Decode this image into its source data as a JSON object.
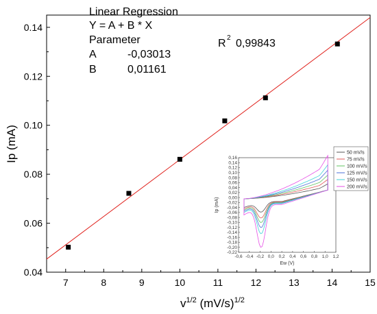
{
  "chart_data": {
    "type": "scatter",
    "xlabel": "v",
    "xlabel_sup": "1/2",
    "xlabel_units": " (mV/s)",
    "xlabel_units_sup": "1/2",
    "ylabel": "Ip (mA)",
    "xlim": [
      6.5,
      15
    ],
    "ylim": [
      0.04,
      0.145
    ],
    "x_ticks": [
      "7",
      "8",
      "9",
      "10",
      "11",
      "12",
      "13",
      "14",
      "15"
    ],
    "y_ticks": [
      "0.04",
      "0.06",
      "0.08",
      "0.10",
      "0.12",
      "0.14"
    ],
    "points": [
      {
        "x": 7.07,
        "y": 0.0502
      },
      {
        "x": 8.66,
        "y": 0.0722
      },
      {
        "x": 10.0,
        "y": 0.0861
      },
      {
        "x": 11.18,
        "y": 0.1018
      },
      {
        "x": 12.25,
        "y": 0.1112
      },
      {
        "x": 14.14,
        "y": 0.1332
      }
    ],
    "fit_line": {
      "intercept": -0.03013,
      "slope": 0.01161,
      "color": "#e0201b"
    },
    "marker_color": "#000000",
    "regression": {
      "title": "Linear Regression",
      "equation": "Y = A + B * X",
      "parameter": "Parameter",
      "a_label": "A",
      "a_value": "-0,03013",
      "b_label": "B",
      "b_value": "0,01161",
      "r_label": "R",
      "r_sup": "2",
      "r_value": "0,99843"
    },
    "inset": {
      "type": "line",
      "xlabel": "Ew (V)",
      "ylabel": "Ip (mA)",
      "xlim": [
        -0.6,
        1.2
      ],
      "ylim": [
        -0.22,
        0.16
      ],
      "x_ticks": [
        "-0,6",
        "-0,4",
        "-0,2",
        "0,0",
        "0,2",
        "0,4",
        "0,6",
        "0,8",
        "1,0",
        "1,2"
      ],
      "y_ticks": [
        "0,16",
        "0,14",
        "0,12",
        "0,10",
        "0,08",
        "0,06",
        "0,04",
        "0,02",
        "0,00",
        "-0,02",
        "-0,04",
        "-0,06",
        "-0,08",
        "-0,10",
        "-0,12",
        "-0,14",
        "-0,16",
        "-0,18",
        "-0,20",
        "-0,22"
      ],
      "legend_position": "top-right",
      "series": [
        {
          "name": "50 mV/s",
          "color": "#555555",
          "upper_end": 0.044,
          "lower_start": -0.04,
          "peak": -0.058
        },
        {
          "name": "75 mV/s",
          "color": "#e05a5a",
          "upper_end": 0.058,
          "lower_start": -0.045,
          "peak": -0.082
        },
        {
          "name": "100 mV/s",
          "color": "#62c462",
          "upper_end": 0.072,
          "lower_start": -0.05,
          "peak": -0.1
        },
        {
          "name": "125 mV/s",
          "color": "#4a6fd8",
          "upper_end": 0.088,
          "lower_start": -0.055,
          "peak": -0.12
        },
        {
          "name": "150 mV/s",
          "color": "#3fd2d8",
          "upper_end": 0.105,
          "lower_start": -0.06,
          "peak": -0.145
        },
        {
          "name": "200 mV/s",
          "color": "#e64fe6",
          "upper_end": 0.135,
          "lower_start": -0.07,
          "peak": -0.2
        }
      ]
    }
  }
}
